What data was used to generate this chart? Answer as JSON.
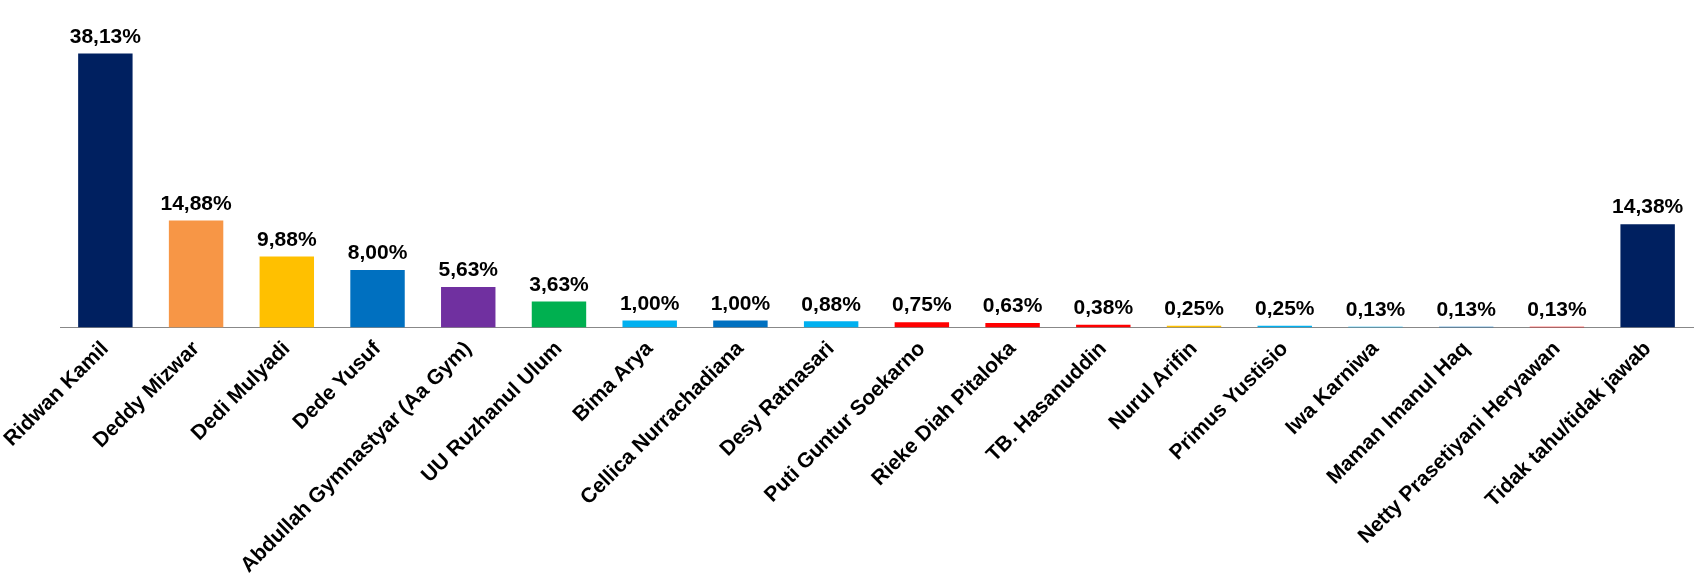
{
  "chart_data": {
    "type": "bar",
    "categories": [
      "Ridwan Kamil",
      "Deddy Mizwar",
      "Dedi Mulyadi",
      "Dede Yusuf",
      "Abdullah Gymnastyar (Aa Gym)",
      "UU Ruzhanul Ulum",
      "Bima Arya",
      "Cellica Nurrachadiana",
      "Desy Ratnasari",
      "Puti Guntur Soekarno",
      "Rieke Diah Pitaloka",
      "TB. Hasanuddin",
      "Nurul Arifin",
      "Primus Yustisio",
      "Iwa Karniwa",
      "Maman Imanul Haq",
      "Netty Prasetiyani Heryawan",
      "Tidak tahu/tidak jawab"
    ],
    "values": [
      38.13,
      14.88,
      9.88,
      8.0,
      5.63,
      3.63,
      1.0,
      1.0,
      0.88,
      0.75,
      0.63,
      0.38,
      0.25,
      0.25,
      0.13,
      0.13,
      0.13,
      14.38
    ],
    "value_labels": [
      "38,13%",
      "14,88%",
      "9,88%",
      "8,00%",
      "5,63%",
      "3,63%",
      "1,00%",
      "1,00%",
      "0,88%",
      "0,75%",
      "0,63%",
      "0,38%",
      "0,25%",
      "0,25%",
      "0,13%",
      "0,13%",
      "0,13%",
      "14,38%"
    ],
    "colors": [
      "#002060",
      "#f79646",
      "#ffc000",
      "#0070c0",
      "#7030a0",
      "#00b050",
      "#00b0f0",
      "#0070c0",
      "#00b0f0",
      "#ff0000",
      "#ff0000",
      "#ff0000",
      "#ffc000",
      "#00b0f0",
      "#00b0f0",
      "#0070c0",
      "#ff0000",
      "#002060"
    ],
    "tick_labels": "x",
    "grid": false,
    "legend": false
  }
}
